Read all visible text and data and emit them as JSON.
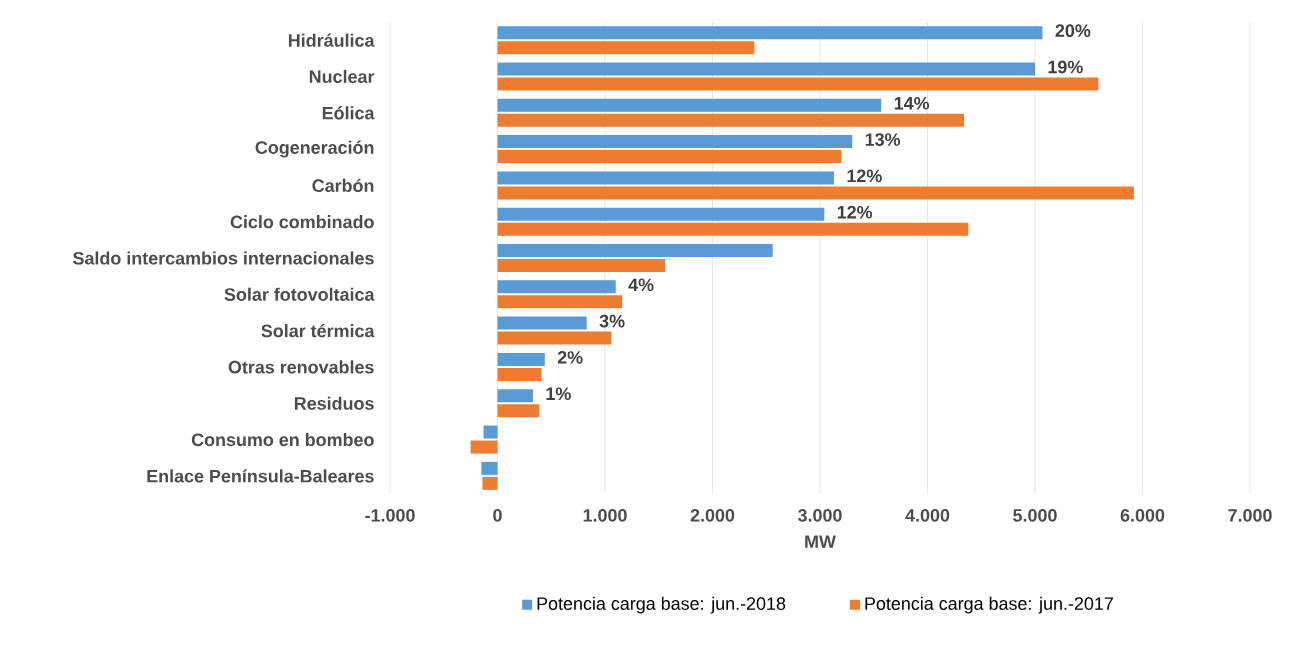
{
  "chart_data": {
    "type": "bar",
    "orientation": "horizontal",
    "xlabel": "MW",
    "categories": [
      "Hidráulica",
      "Nuclear",
      "Eólica",
      "Cogeneración",
      "Carbón",
      "Ciclo combinado",
      "Saldo intercambios internacionales",
      "Solar fotovoltaica",
      "Solar térmica",
      "Otras renovables",
      "Residuos",
      "Consumo en bombeo",
      "Enlace Península-Baleares"
    ],
    "series": [
      {
        "name": "Potencia carga base: jun.-2018",
        "color": "#5b9bd5",
        "values": [
          5070,
          5000,
          3570,
          3300,
          3130,
          3040,
          2560,
          1100,
          830,
          440,
          330,
          -130,
          -150
        ]
      },
      {
        "name": "Potencia carga base: jun.-2017",
        "color": "#ed7d31",
        "values": [
          2390,
          5590,
          4340,
          3200,
          5920,
          4380,
          1560,
          1160,
          1060,
          410,
          390,
          -250,
          -140
        ]
      }
    ],
    "xlim": [
      -1000,
      7000
    ],
    "xticks": [
      {
        "value": -1000,
        "label": "-1.000"
      },
      0,
      {
        "value": 1000,
        "label": "1.000"
      },
      {
        "value": 2000,
        "label": "2.000"
      },
      {
        "value": 3000,
        "label": "3.000"
      },
      {
        "value": 4000,
        "label": "4.000"
      },
      {
        "value": 5000,
        "label": "5.000"
      },
      {
        "value": 6000,
        "label": "6.000"
      },
      {
        "value": 7000,
        "label": "7.000"
      }
    ],
    "annotations": [
      {
        "text": "20%",
        "x": 5070,
        "y": "Hidráulica"
      },
      {
        "text": "19%",
        "x": 5000,
        "y": "Nuclear"
      },
      {
        "text": "14%",
        "x": 3570,
        "y": "Eólica"
      },
      {
        "text": "13%",
        "x": 3300,
        "y": "Cogeneración"
      },
      {
        "text": "12%",
        "x": 3130,
        "y": "Carbón"
      },
      {
        "text": "12%",
        "x": 3040,
        "y": "Ciclo combinado"
      },
      {
        "text": "4%",
        "x": 1100,
        "y": "Solar fotovoltaica"
      },
      {
        "text": "3%",
        "x": 830,
        "y": "Solar térmica"
      },
      {
        "text": "2%",
        "x": 440,
        "y": "Otras renovables"
      },
      {
        "text": "1%",
        "x": 330,
        "y": "Residuos"
      }
    ],
    "grid": "x",
    "legend": "bottom"
  }
}
